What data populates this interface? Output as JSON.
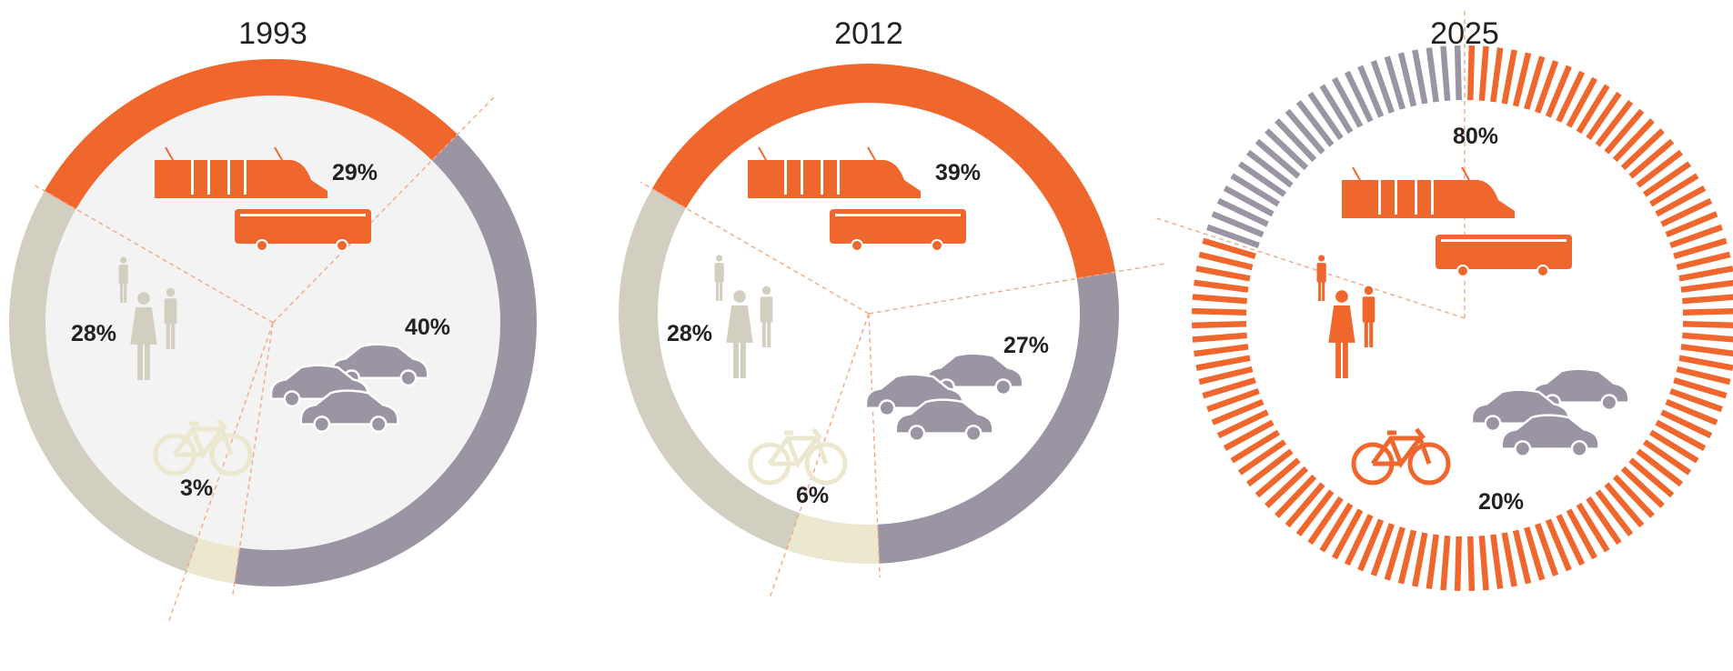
{
  "colors": {
    "public_transport": "#f0672e",
    "car": "#9a94a3",
    "walking": "#d2cec0",
    "cycling": "#ece8d0",
    "inner": "#f3f3f3",
    "guide": "#f2a987"
  },
  "icons": [
    "tram-icon",
    "bus-icon",
    "pedestrians-icon",
    "bicycle-icon",
    "cars-icon"
  ],
  "chart_data": [
    {
      "type": "pie",
      "title": "1993",
      "slices": [
        {
          "key": "public_transport",
          "value": 29,
          "label": "29%",
          "icon": "tram-icon"
        },
        {
          "key": "car",
          "value": 40,
          "label": "40%",
          "icon": "cars-icon"
        },
        {
          "key": "cycling",
          "value": 3,
          "label": "3%",
          "icon": "bicycle-icon"
        },
        {
          "key": "walking",
          "value": 28,
          "label": "28%",
          "icon": "pedestrians-icon"
        }
      ]
    },
    {
      "type": "pie",
      "title": "2012",
      "slices": [
        {
          "key": "public_transport",
          "value": 39,
          "label": "39%",
          "icon": "tram-icon"
        },
        {
          "key": "car",
          "value": 27,
          "label": "27%",
          "icon": "cars-icon"
        },
        {
          "key": "cycling",
          "value": 6,
          "label": "6%",
          "icon": "bicycle-icon"
        },
        {
          "key": "walking",
          "value": 28,
          "label": "28%",
          "icon": "pedestrians-icon"
        }
      ]
    },
    {
      "type": "pie",
      "title": "2025",
      "slices": [
        {
          "key": "public_transport",
          "value": 80,
          "label": "80%",
          "icon": "tram-icon"
        },
        {
          "key": "car",
          "value": 20,
          "label": "20%",
          "icon": "cars-icon"
        }
      ]
    }
  ]
}
